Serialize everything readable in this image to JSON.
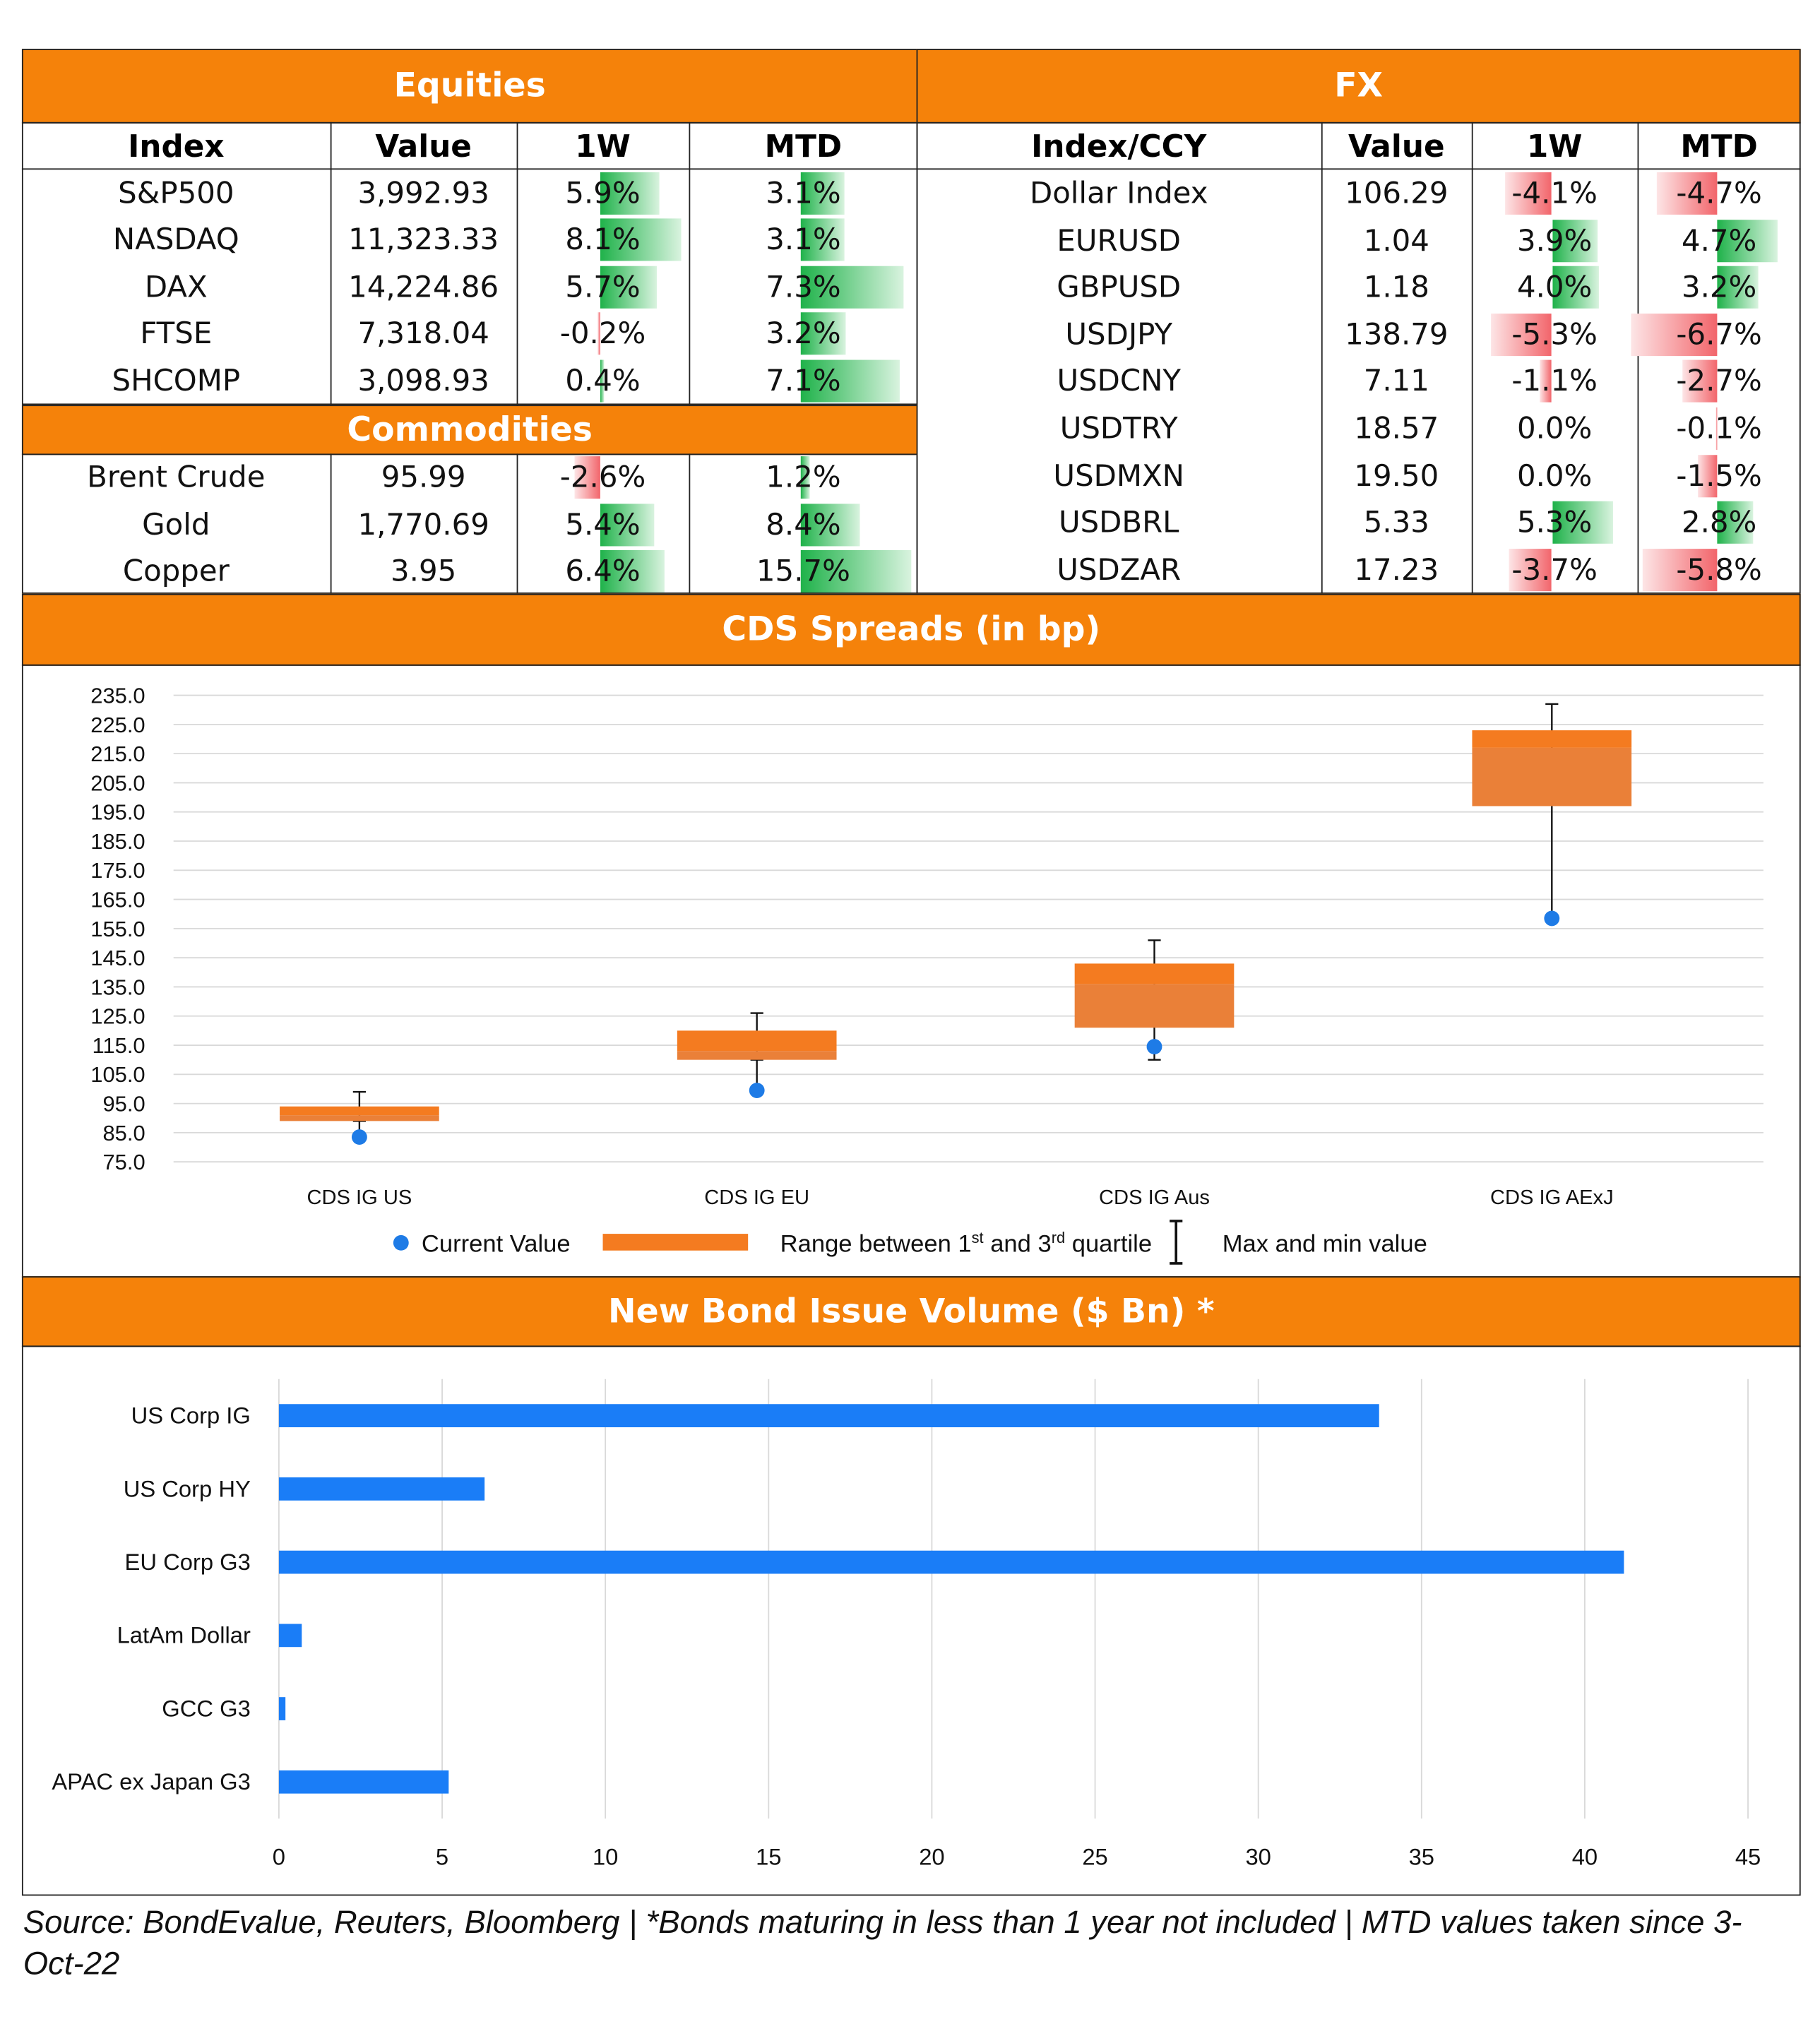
{
  "equities": {
    "title": "Equities",
    "headers": [
      "Index",
      "Value",
      "1W",
      "MTD"
    ],
    "rows": [
      {
        "name": "S&P500",
        "value": "3,992.93",
        "w1": "5.9%",
        "mtd": "3.1%",
        "w1v": 5.9,
        "mtdv": 3.1
      },
      {
        "name": "NASDAQ",
        "value": "11,323.33",
        "w1": "8.1%",
        "mtd": "3.1%",
        "w1v": 8.1,
        "mtdv": 3.1
      },
      {
        "name": "DAX",
        "value": "14,224.86",
        "w1": "5.7%",
        "mtd": "7.3%",
        "w1v": 5.7,
        "mtdv": 7.3
      },
      {
        "name": "FTSE",
        "value": "7,318.04",
        "w1": "-0.2%",
        "mtd": "3.2%",
        "w1v": -0.2,
        "mtdv": 3.2
      },
      {
        "name": "SHCOMP",
        "value": "3,098.93",
        "w1": "0.4%",
        "mtd": "7.1%",
        "w1v": 0.4,
        "mtdv": 7.1
      }
    ]
  },
  "commodities": {
    "title": "Commodities",
    "rows": [
      {
        "name": "Brent Crude",
        "value": "95.99",
        "w1": "-2.6%",
        "mtd": "1.2%",
        "w1v": -2.6,
        "mtdv": 1.2
      },
      {
        "name": "Gold",
        "value": "1,770.69",
        "w1": "5.4%",
        "mtd": "8.4%",
        "w1v": 5.4,
        "mtdv": 8.4
      },
      {
        "name": "Copper",
        "value": "3.95",
        "w1": "6.4%",
        "mtd": "15.7%",
        "w1v": 6.4,
        "mtdv": 15.7
      }
    ]
  },
  "fx": {
    "title": "FX",
    "headers": [
      "Index/CCY",
      "Value",
      "1W",
      "MTD"
    ],
    "rows": [
      {
        "name": "Dollar Index",
        "value": "106.29",
        "w1": "-4.1%",
        "mtd": "-4.7%",
        "w1v": -4.1,
        "mtdv": -4.7
      },
      {
        "name": "EURUSD",
        "value": "1.04",
        "w1": "3.9%",
        "mtd": "4.7%",
        "w1v": 3.9,
        "mtdv": 4.7
      },
      {
        "name": "GBPUSD",
        "value": "1.18",
        "w1": "4.0%",
        "mtd": "3.2%",
        "w1v": 4.0,
        "mtdv": 3.2
      },
      {
        "name": "USDJPY",
        "value": "138.79",
        "w1": "-5.3%",
        "mtd": "-6.7%",
        "w1v": -5.3,
        "mtdv": -6.7
      },
      {
        "name": "USDCNY",
        "value": "7.11",
        "w1": "-1.1%",
        "mtd": "-2.7%",
        "w1v": -1.1,
        "mtdv": -2.7
      },
      {
        "name": "USDTRY",
        "value": "18.57",
        "w1": "0.0%",
        "mtd": "-0.1%",
        "w1v": 0.0,
        "mtdv": -0.1
      },
      {
        "name": "USDMXN",
        "value": "19.50",
        "w1": "0.0%",
        "mtd": "-1.5%",
        "w1v": 0.0,
        "mtdv": -1.5
      },
      {
        "name": "USDBRL",
        "value": "5.33",
        "w1": "5.3%",
        "mtd": "2.8%",
        "w1v": 5.3,
        "mtdv": 2.8
      },
      {
        "name": "USDZAR",
        "value": "17.23",
        "w1": "-3.7%",
        "mtd": "-5.8%",
        "w1v": -3.7,
        "mtdv": -5.8
      }
    ]
  },
  "cds_title": "CDS Spreads (in bp)",
  "bond_title": "New Bond Issue Volume ($ Bn) *",
  "chart_data": [
    {
      "type": "box",
      "title": "CDS Spreads (in bp)",
      "categories": [
        "CDS IG US",
        "CDS IG EU",
        "CDS IG Aus",
        "CDS IG AExJ"
      ],
      "ylim": [
        75,
        235
      ],
      "yticks": [
        "235.0",
        "225.0",
        "215.0",
        "205.0",
        "195.0",
        "185.0",
        "175.0",
        "165.0",
        "155.0",
        "145.0",
        "135.0",
        "125.0",
        "115.0",
        "105.0",
        "95.0",
        "85.0",
        "75.0"
      ],
      "series": [
        {
          "name": "CDS IG US",
          "min": 89,
          "q1": 89,
          "median": 91,
          "q3": 94,
          "max": 99,
          "current": 83.5
        },
        {
          "name": "CDS IG EU",
          "min": 110,
          "q1": 110,
          "median": 113,
          "q3": 120,
          "max": 126,
          "current": 99.5
        },
        {
          "name": "CDS IG Aus",
          "min": 110,
          "q1": 121,
          "median": 136,
          "q3": 143,
          "max": 151,
          "current": 114.5
        },
        {
          "name": "CDS IG AExJ",
          "min": 158,
          "q1": 197,
          "median": 217,
          "q3": 223,
          "max": 232,
          "current": 158.5
        }
      ],
      "legend": {
        "current": "Current Value",
        "range_pre": "Range between 1",
        "range_sup1": "st",
        "range_mid": " and 3",
        "range_sup2": "rd",
        "range_post": " quartile",
        "maxmin": "Max and min value"
      },
      "colors": {
        "box": "#ED7D31",
        "current": "#1E7BE6"
      }
    },
    {
      "type": "bar",
      "orientation": "horizontal",
      "title": "New Bond Issue Volume ($ Bn) *",
      "categories": [
        "US Corp IG",
        "US Corp HY",
        "EU Corp G3",
        "LatAm Dollar",
        "GCC G3",
        "APAC ex Japan G3"
      ],
      "values": [
        33.7,
        6.3,
        41.2,
        0.7,
        0.2,
        5.2
      ],
      "xlim": [
        0,
        45
      ],
      "xticks": [
        "0",
        "5",
        "10",
        "15",
        "20",
        "25",
        "30",
        "35",
        "40",
        "45"
      ],
      "colors": {
        "bar": "#1A7DF7"
      }
    }
  ],
  "source": "Source: BondEvalue, Reuters, Bloomberg | *Bonds maturing in less than 1 year not included | MTD values taken since 3-Oct-22"
}
